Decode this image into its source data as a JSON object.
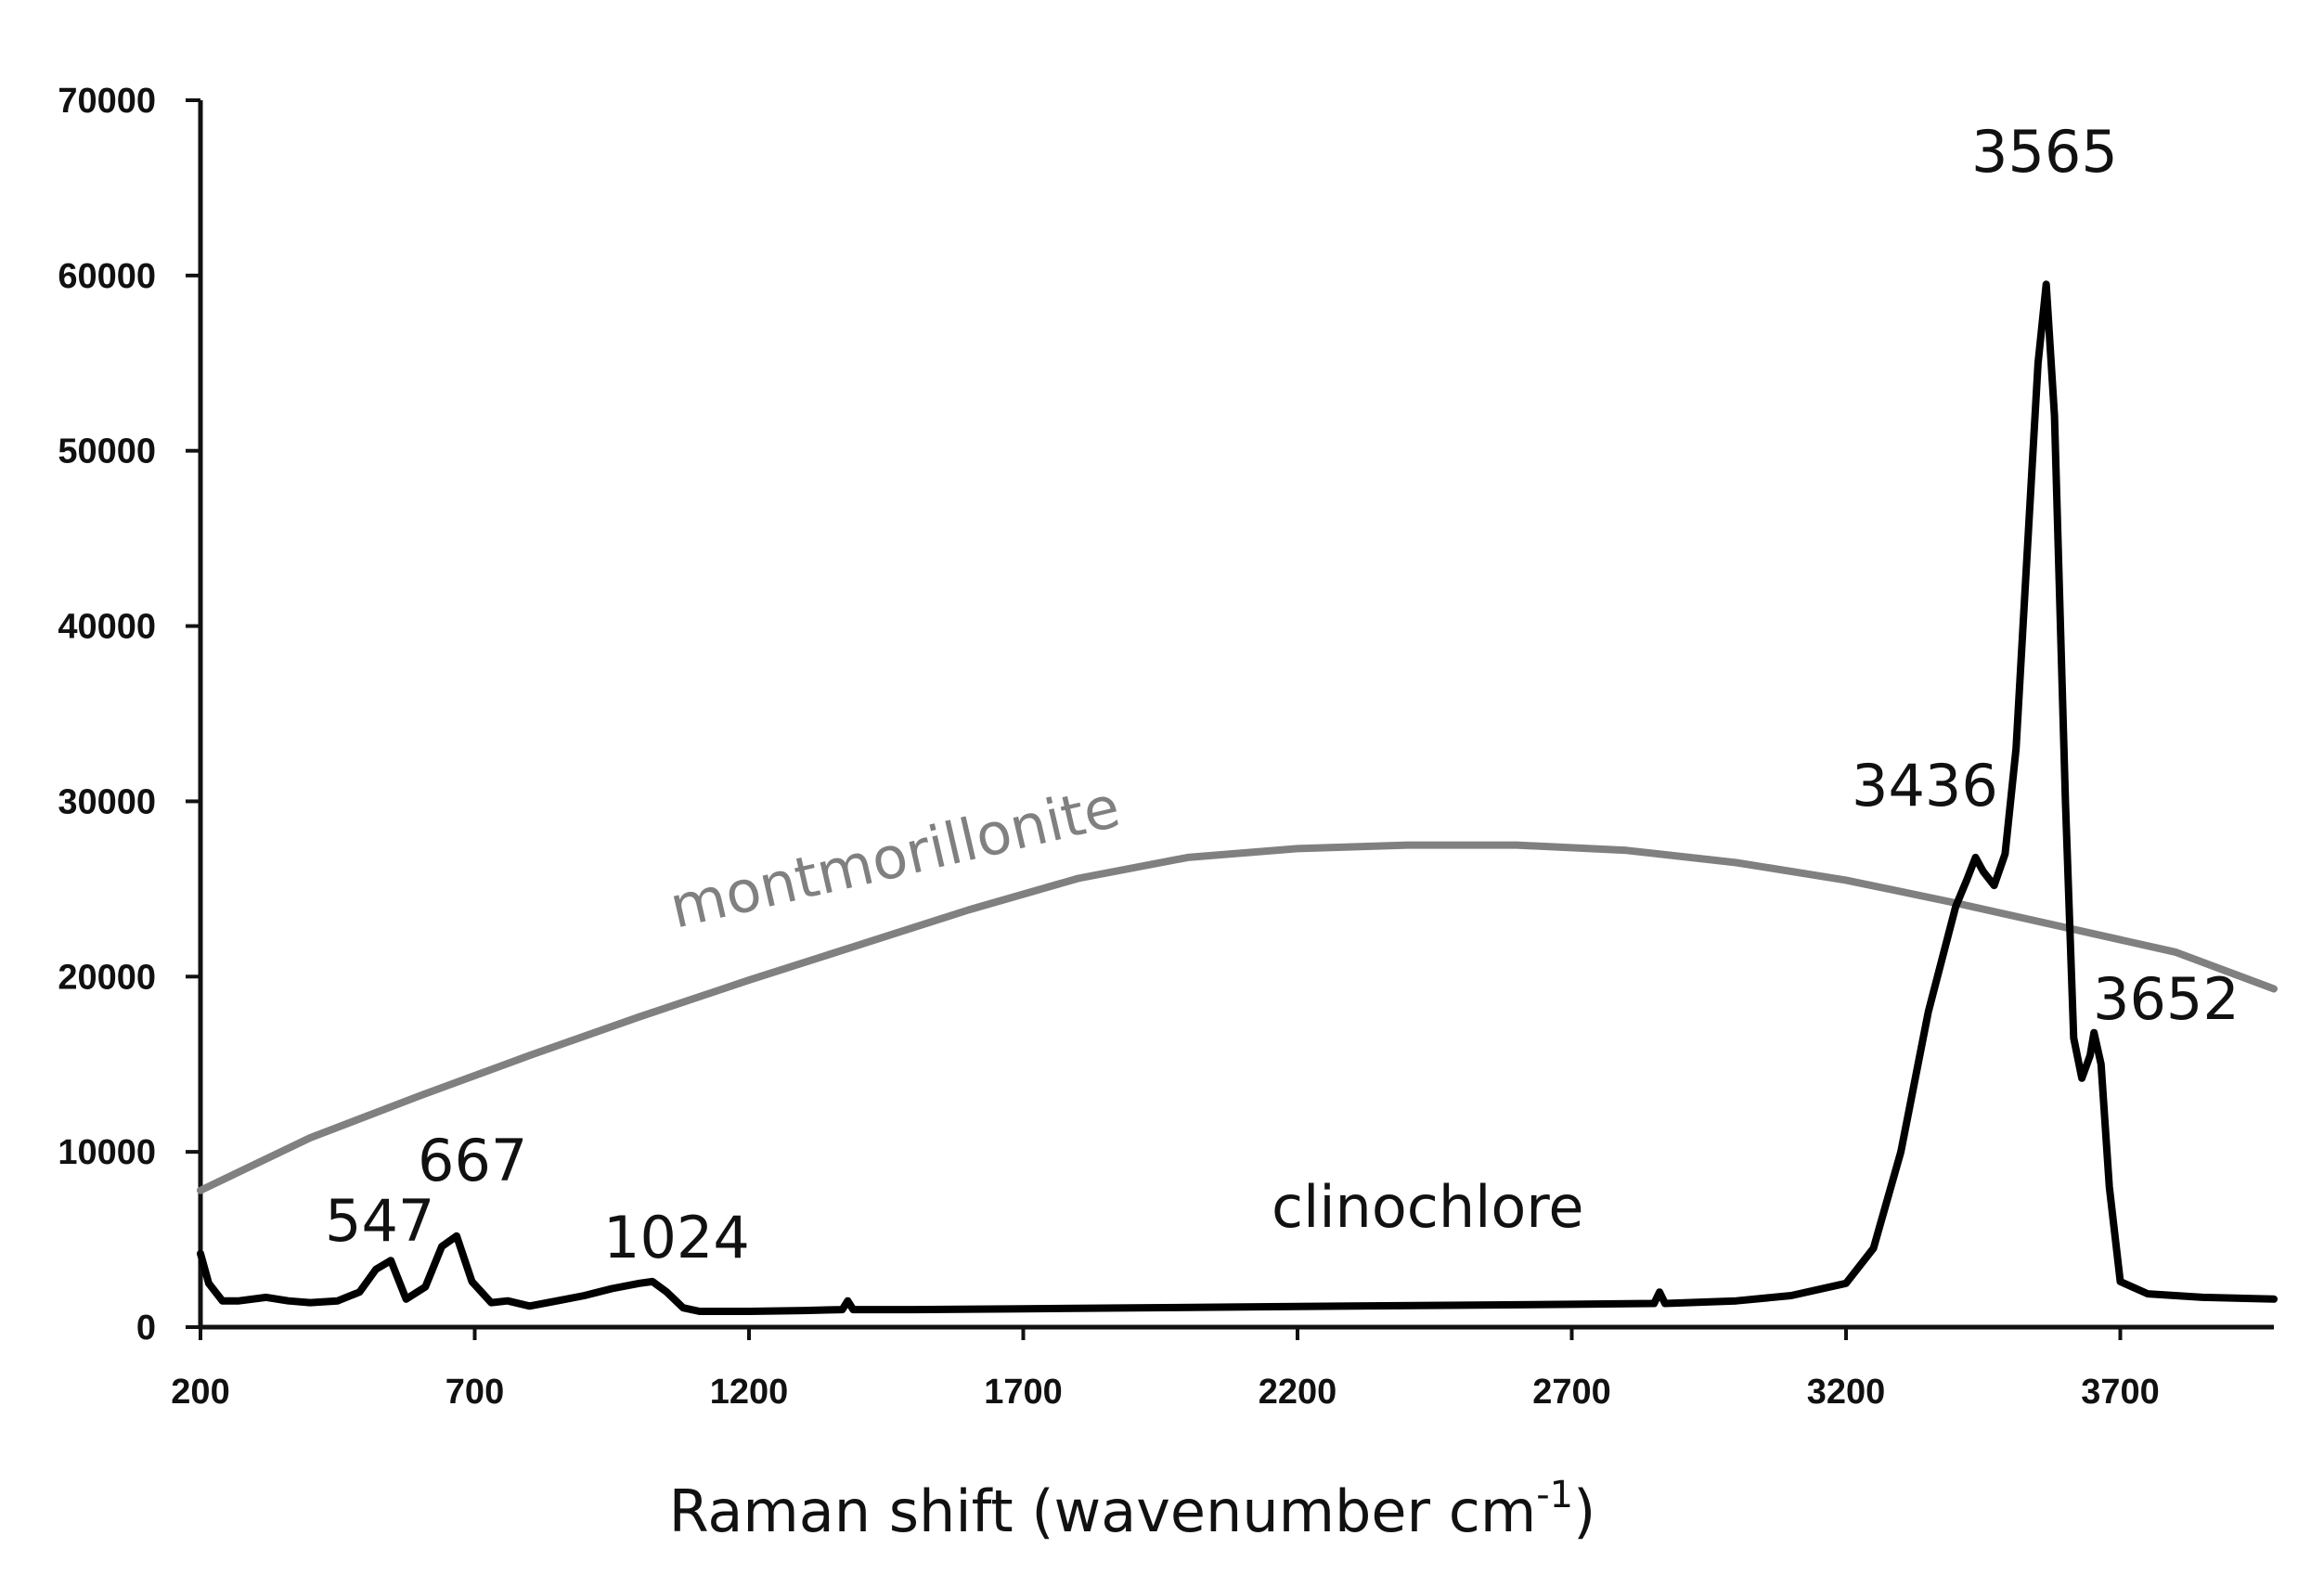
{
  "chart_data": {
    "type": "line",
    "title": "",
    "xlabel": "Raman shift (wavenumber cm",
    "xlabel_superscript": "-1",
    "xlabel_suffix": ")",
    "ylabel": "",
    "xlim": [
      200,
      3980
    ],
    "ylim": [
      0,
      70000
    ],
    "x_ticks": [
      "200",
      "700",
      "1200",
      "1700",
      "2200",
      "2700",
      "3200",
      "3700"
    ],
    "y_ticks": [
      "0",
      "10000",
      "20000",
      "30000",
      "40000",
      "50000",
      "60000",
      "70000"
    ],
    "grid": false,
    "legend": "none",
    "series": [
      {
        "name": "montmorillonite",
        "color": "#808080",
        "x": [
          200,
          400,
          600,
          800,
          1000,
          1200,
          1400,
          1600,
          1800,
          2000,
          2200,
          2400,
          2600,
          2800,
          3000,
          3200,
          3400,
          3600,
          3800,
          3980
        ],
        "y": [
          7800,
          10800,
          13200,
          15500,
          17700,
          19800,
          21800,
          23800,
          25600,
          26800,
          27300,
          27500,
          27500,
          27200,
          26500,
          25500,
          24200,
          22800,
          21400,
          19300
        ]
      },
      {
        "name": "clinochlore",
        "color": "#000000",
        "x": [
          200,
          215,
          240,
          270,
          320,
          360,
          400,
          450,
          490,
          520,
          547,
          575,
          610,
          640,
          667,
          695,
          730,
          760,
          800,
          850,
          900,
          950,
          1000,
          1024,
          1050,
          1080,
          1110,
          1200,
          1300,
          1370,
          1380,
          1390,
          1500,
          1700,
          1900,
          2100,
          2300,
          2500,
          2700,
          2850,
          2860,
          2870,
          3000,
          3100,
          3200,
          3250,
          3300,
          3350,
          3400,
          3420,
          3436,
          3450,
          3470,
          3490,
          3510,
          3530,
          3550,
          3565,
          3580,
          3600,
          3615,
          3630,
          3645,
          3652,
          3665,
          3680,
          3700,
          3750,
          3850,
          3980
        ],
        "y": [
          4200,
          2500,
          1500,
          1500,
          1700,
          1500,
          1400,
          1500,
          2000,
          3300,
          3800,
          1600,
          2300,
          4600,
          5200,
          2600,
          1400,
          1500,
          1200,
          1500,
          1800,
          2200,
          2500,
          2600,
          2000,
          1100,
          900,
          900,
          950,
          1000,
          1500,
          1000,
          1000,
          1050,
          1100,
          1150,
          1200,
          1250,
          1300,
          1350,
          2000,
          1350,
          1500,
          1800,
          2500,
          4500,
          10000,
          18000,
          24000,
          25500,
          26800,
          26000,
          25200,
          27000,
          33000,
          44000,
          55000,
          59500,
          52000,
          30000,
          16500,
          14200,
          15500,
          16800,
          15000,
          8000,
          2600,
          1900,
          1700,
          1600
        ]
      }
    ],
    "series_labels": [
      {
        "text": "montmorillonite",
        "color": "#808080"
      },
      {
        "text": "clinochlore",
        "color": "#111111"
      }
    ],
    "annotations": [
      "547",
      "667",
      "1024",
      "3436",
      "3565",
      "3652"
    ]
  }
}
